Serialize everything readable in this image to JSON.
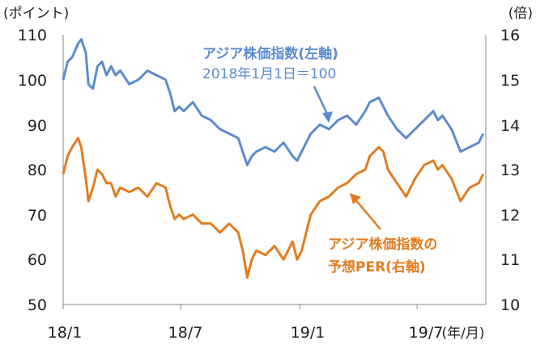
{
  "chart_data": {
    "type": "line",
    "left_axis": {
      "unit": "(ポイント)",
      "ticks": [
        "110",
        "100",
        "90",
        "80",
        "70",
        "60",
        "50"
      ],
      "ylim": [
        50,
        110
      ]
    },
    "right_axis": {
      "unit": "(倍)",
      "ticks": [
        "16",
        "15",
        "14",
        "13",
        "12",
        "11",
        "10"
      ],
      "ylim": [
        10,
        16
      ]
    },
    "x_axis": {
      "ticks": [
        "18/1",
        "18/7",
        "19/1",
        "19/7"
      ],
      "unit": "(年/月)",
      "range": [
        "2018-01-01",
        "2019-10-15"
      ]
    },
    "annotations": {
      "blue_title": "アジア株価指数(左軸)",
      "blue_sub": "2018年1月1日＝100",
      "orange_line1": "アジア株価指数の",
      "orange_line2": "予想PER(右軸)"
    },
    "colors": {
      "blue": "#5B8BCF",
      "orange": "#E27C20",
      "axis": "#888888"
    },
    "series": [
      {
        "axis": "left",
        "color": "#5B8BCF",
        "x": [
          "2018-01-01",
          "2018-01-08",
          "2018-01-15",
          "2018-01-24",
          "2018-01-29",
          "2018-02-05",
          "2018-02-09",
          "2018-02-16",
          "2018-02-23",
          "2018-03-02",
          "2018-03-09",
          "2018-03-16",
          "2018-03-23",
          "2018-03-30",
          "2018-04-13",
          "2018-04-27",
          "2018-05-11",
          "2018-05-25",
          "2018-06-08",
          "2018-06-15",
          "2018-06-22",
          "2018-06-29",
          "2018-07-06",
          "2018-07-20",
          "2018-08-03",
          "2018-08-17",
          "2018-08-31",
          "2018-09-14",
          "2018-09-28",
          "2018-10-05",
          "2018-10-12",
          "2018-10-19",
          "2018-10-26",
          "2018-11-09",
          "2018-11-23",
          "2018-12-07",
          "2018-12-21",
          "2018-12-28",
          "2019-01-04",
          "2019-01-18",
          "2019-02-01",
          "2019-02-15",
          "2019-03-01",
          "2019-03-15",
          "2019-03-29",
          "2019-04-12",
          "2019-04-19",
          "2019-05-03",
          "2019-05-10",
          "2019-05-17",
          "2019-05-31",
          "2019-06-14",
          "2019-06-28",
          "2019-07-12",
          "2019-07-26",
          "2019-08-02",
          "2019-08-09",
          "2019-08-23",
          "2019-09-06",
          "2019-09-20",
          "2019-10-04",
          "2019-10-11"
        ],
        "values": [
          100,
          104,
          105,
          108,
          109,
          106,
          99,
          98,
          103,
          104,
          101,
          103,
          101,
          102,
          99,
          100,
          102,
          101,
          100,
          97,
          93,
          94,
          93,
          95,
          92,
          91,
          89,
          88,
          87,
          84,
          81,
          83,
          84,
          85,
          84,
          86,
          83,
          82,
          84,
          88,
          90,
          89,
          91,
          92,
          90,
          93,
          95,
          96,
          94,
          92,
          89,
          87,
          89,
          91,
          93,
          91,
          92,
          89,
          84,
          85,
          86,
          88
        ]
      },
      {
        "axis": "right",
        "color": "#E27C20",
        "x": [
          "2018-01-01",
          "2018-01-08",
          "2018-01-15",
          "2018-01-24",
          "2018-01-29",
          "2018-02-05",
          "2018-02-09",
          "2018-02-16",
          "2018-02-23",
          "2018-03-02",
          "2018-03-09",
          "2018-03-16",
          "2018-03-23",
          "2018-03-30",
          "2018-04-13",
          "2018-04-27",
          "2018-05-11",
          "2018-05-25",
          "2018-06-08",
          "2018-06-15",
          "2018-06-22",
          "2018-06-29",
          "2018-07-06",
          "2018-07-20",
          "2018-08-03",
          "2018-08-17",
          "2018-08-31",
          "2018-09-14",
          "2018-09-28",
          "2018-10-05",
          "2018-10-12",
          "2018-10-19",
          "2018-10-26",
          "2018-11-09",
          "2018-11-23",
          "2018-12-07",
          "2018-12-21",
          "2018-12-28",
          "2019-01-04",
          "2019-01-18",
          "2019-02-01",
          "2019-02-15",
          "2019-03-01",
          "2019-03-15",
          "2019-03-29",
          "2019-04-12",
          "2019-04-19",
          "2019-05-03",
          "2019-05-10",
          "2019-05-17",
          "2019-05-31",
          "2019-06-14",
          "2019-06-28",
          "2019-07-12",
          "2019-07-26",
          "2019-08-02",
          "2019-08-09",
          "2019-08-23",
          "2019-09-06",
          "2019-09-20",
          "2019-10-04",
          "2019-10-11"
        ],
        "values": [
          12.9,
          13.3,
          13.5,
          13.7,
          13.5,
          12.8,
          12.3,
          12.6,
          13.0,
          12.9,
          12.7,
          12.7,
          12.4,
          12.6,
          12.5,
          12.6,
          12.4,
          12.7,
          12.6,
          12.2,
          11.9,
          12.0,
          11.9,
          12.0,
          11.8,
          11.8,
          11.6,
          11.8,
          11.6,
          11.2,
          10.6,
          11.0,
          11.2,
          11.1,
          11.3,
          11.0,
          11.4,
          11.0,
          11.2,
          12.0,
          12.3,
          12.4,
          12.6,
          12.7,
          12.9,
          13.0,
          13.3,
          13.5,
          13.4,
          13.0,
          12.7,
          12.4,
          12.8,
          13.1,
          13.2,
          13.0,
          13.1,
          12.8,
          12.3,
          12.6,
          12.7,
          12.9
        ]
      }
    ]
  }
}
